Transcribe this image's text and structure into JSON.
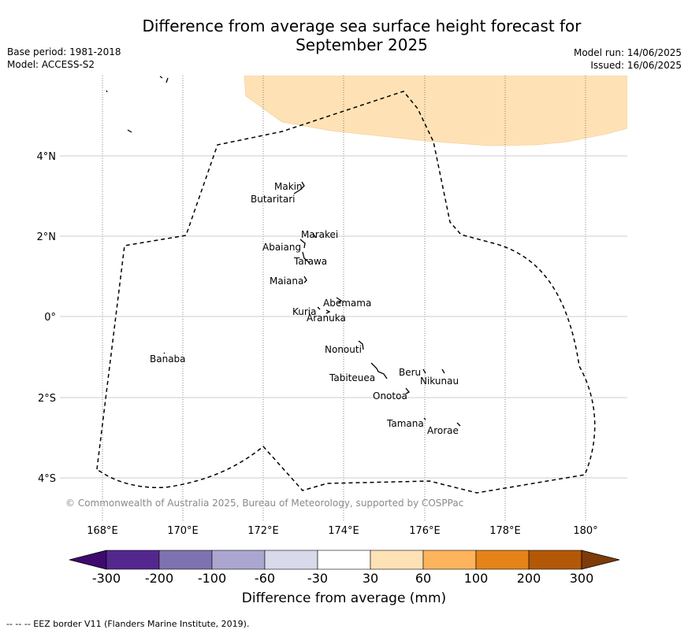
{
  "title_line1": "Difference from average sea surface height forecast for",
  "title_line2": "September 2025",
  "base_period": "Base period: 1981-2018",
  "model": "Model: ACCESS-S2",
  "model_run": "Model run: 14/06/2025",
  "issued": "Issued: 16/06/2025",
  "copyright": "© Commonwealth of Australia 2025, Bureau of Meteorology, supported by COSPPac",
  "lat_labels": [
    "4°N",
    "2°N",
    "0°",
    "2°S",
    "4°S"
  ],
  "lon_labels": [
    "168°E",
    "170°E",
    "172°E",
    "174°E",
    "176°E",
    "178°E",
    "180°"
  ],
  "islands": [
    "Makin",
    "Butaritari",
    "Marakei",
    "Abaiang",
    "Tarawa",
    "Maiana",
    "Abemama",
    "Kuria",
    "Aranuka",
    "Nonouti",
    "Banaba",
    "Beru",
    "Nikunau",
    "Tabiteuea",
    "Onotoa",
    "Tamana",
    "Arorae"
  ],
  "colorbar": {
    "ticks": [
      "-300",
      "-200",
      "-100",
      "-60",
      "-30",
      "30",
      "60",
      "100",
      "200",
      "300"
    ],
    "colors": [
      "#3f0a6e",
      "#54278f",
      "#7f72b0",
      "#aba6d0",
      "#d9d9ec",
      "#ffffff",
      "#fee2b5",
      "#fdb45c",
      "#e48418",
      "#b35806",
      "#7f3b08"
    ],
    "label": "Difference from average (mm)"
  },
  "eez_note": "--  --  -- EEZ border V11 (Flanders Marine Institute, 2019)."
}
